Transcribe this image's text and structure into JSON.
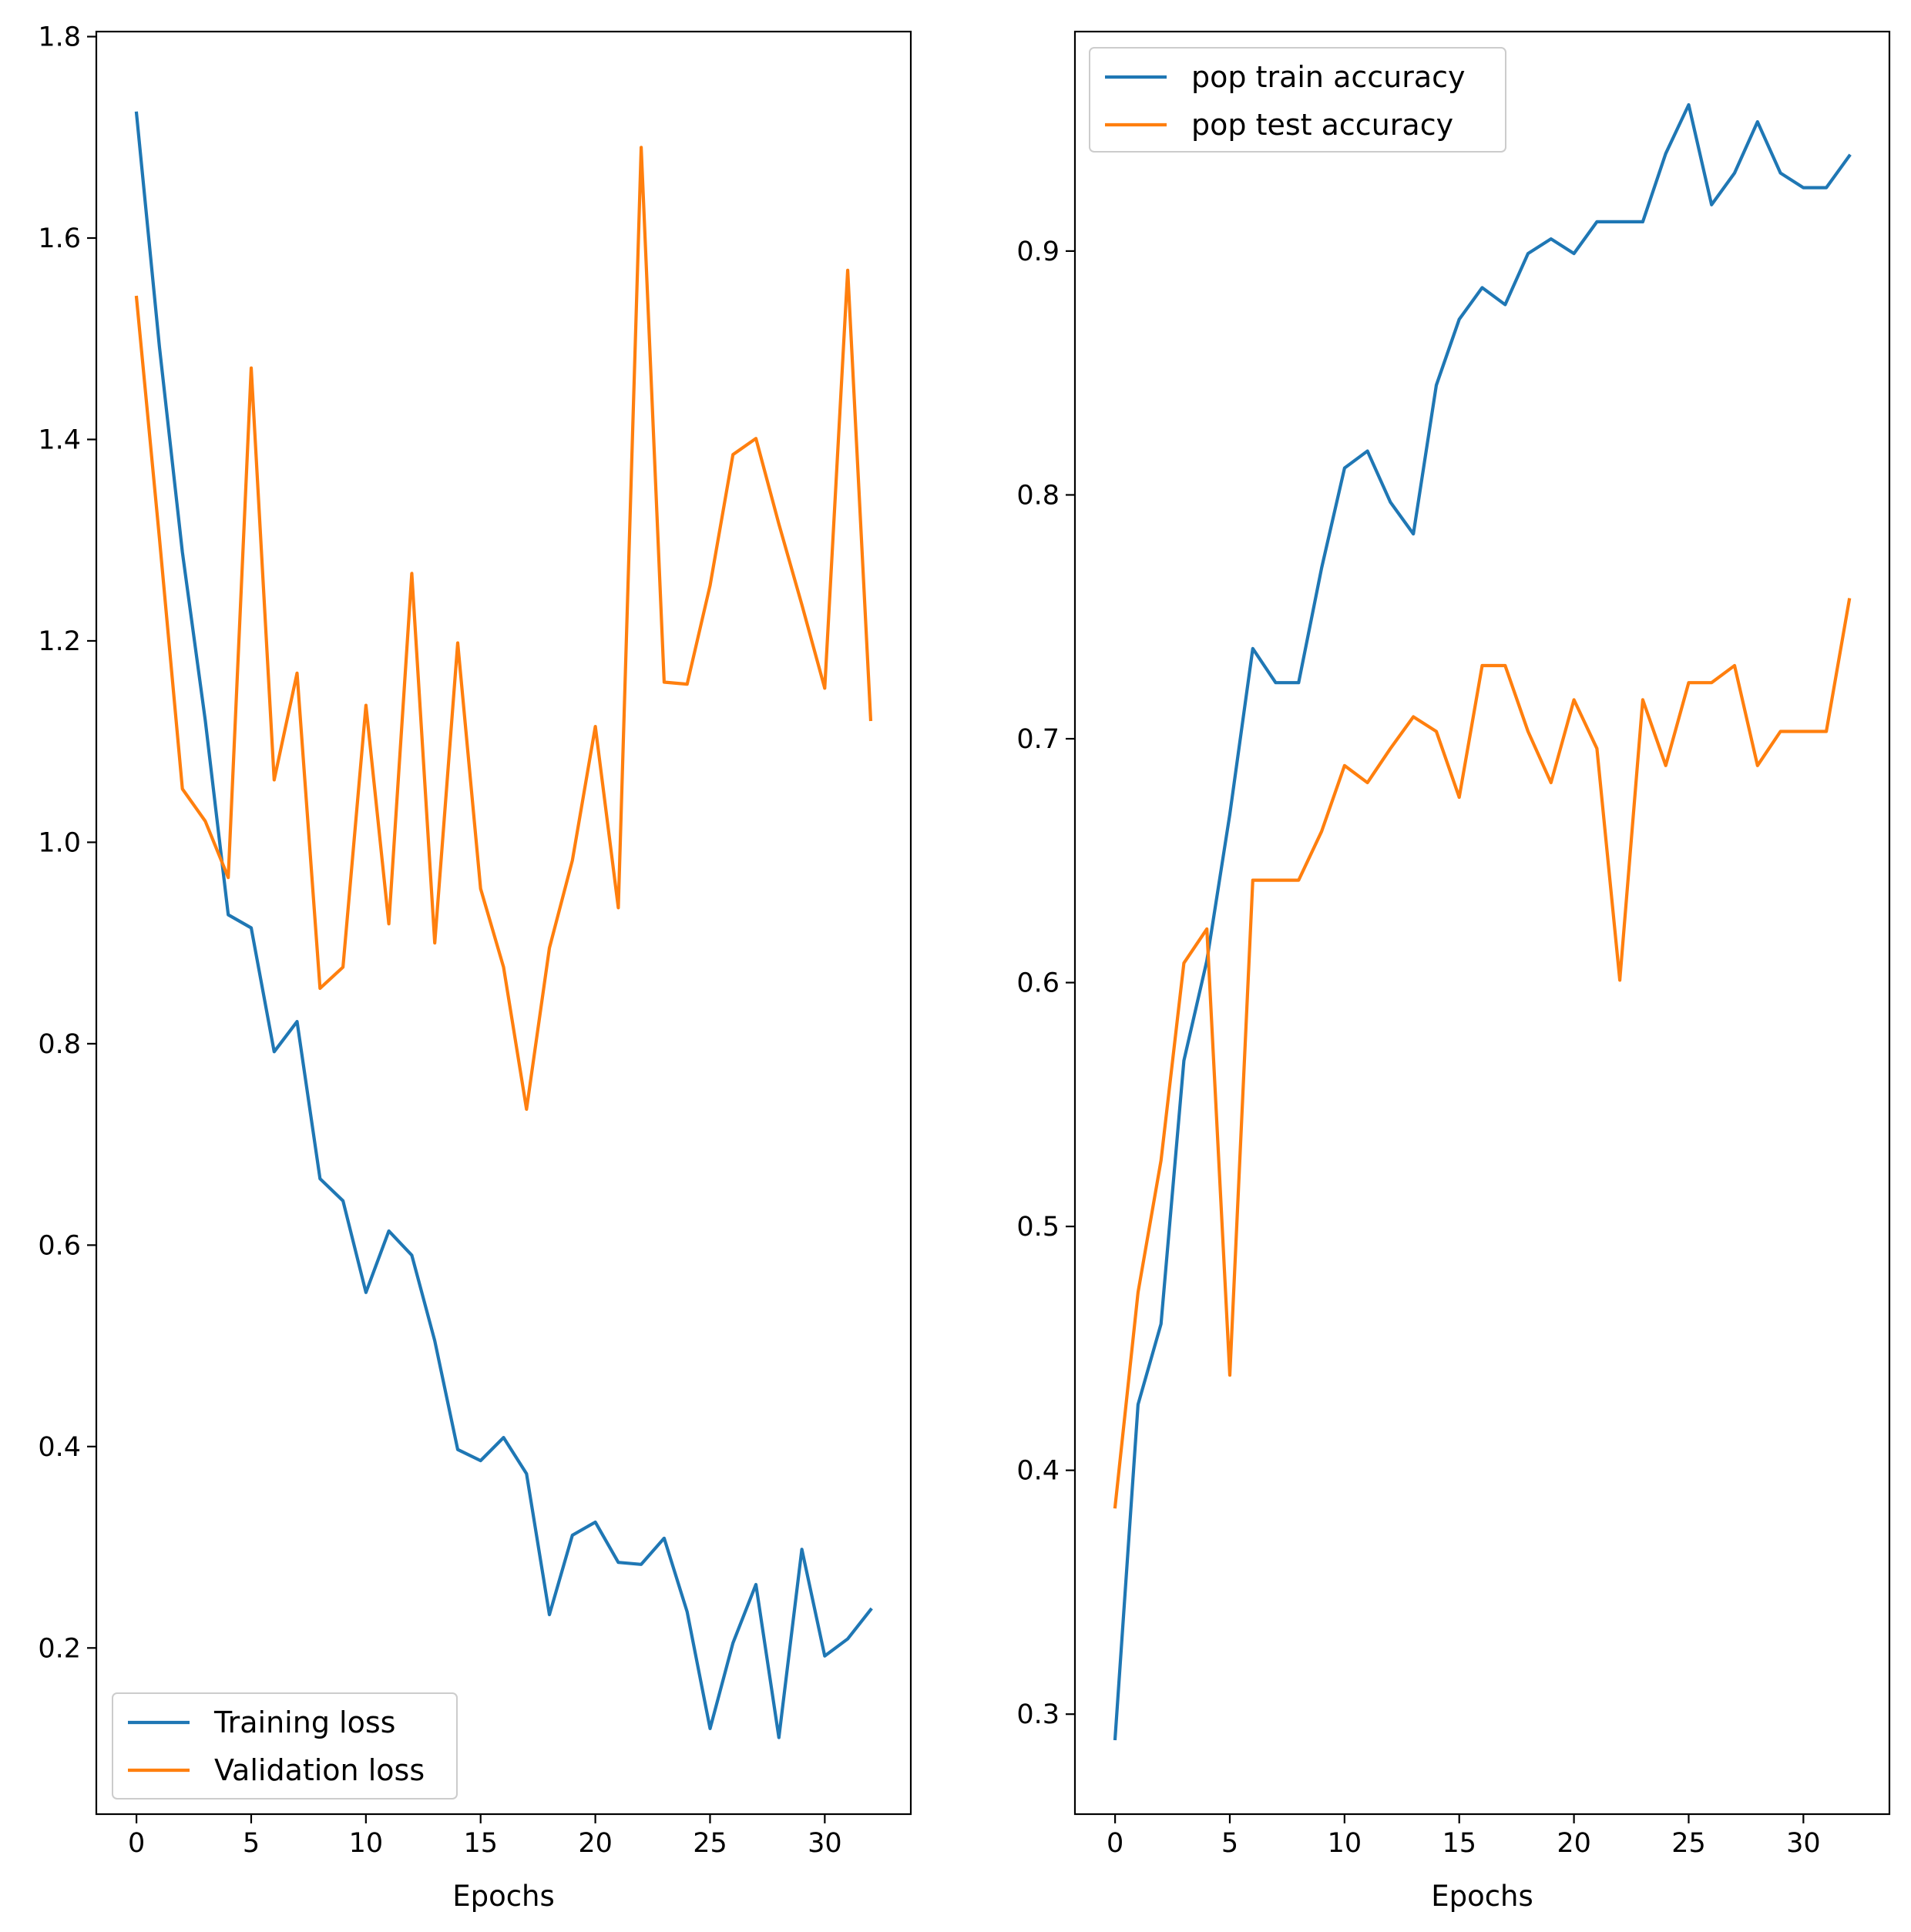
{
  "figure": {
    "charts": [
      {
        "legend_position": "lower-left"
      },
      {
        "legend_position": "upper-left"
      }
    ]
  },
  "chart_data": [
    {
      "type": "line",
      "title": "",
      "xlabel": "Epochs",
      "ylabel": "",
      "xlim": [
        -1.75,
        33.75
      ],
      "ylim": [
        0.035,
        1.805
      ],
      "xticks": [
        0,
        5,
        10,
        15,
        20,
        25,
        30
      ],
      "yticks": [
        0.2,
        0.4,
        0.6,
        0.8,
        1.0,
        1.2,
        1.4,
        1.6,
        1.8
      ],
      "ytick_labels": [
        "0.2",
        "0.4",
        "0.6",
        "0.8",
        "1.0",
        "1.2",
        "1.4",
        "1.6",
        "1.8"
      ],
      "grid": false,
      "legend": "lower-left",
      "x": [
        0,
        1,
        2,
        3,
        4,
        5,
        6,
        7,
        8,
        9,
        10,
        11,
        12,
        13,
        14,
        15,
        16,
        17,
        18,
        19,
        20,
        21,
        22,
        23,
        24,
        25,
        26,
        27,
        28,
        29,
        30,
        31,
        32
      ],
      "series": [
        {
          "name": "Training loss",
          "color": "#1f77b4",
          "values": [
            1.724,
            1.492,
            1.288,
            1.121,
            0.928,
            0.915,
            0.792,
            0.822,
            0.666,
            0.644,
            0.553,
            0.614,
            0.59,
            0.505,
            0.397,
            0.386,
            0.409,
            0.373,
            0.233,
            0.312,
            0.325,
            0.285,
            0.283,
            0.309,
            0.236,
            0.12,
            0.205,
            0.263,
            0.111,
            0.298,
            0.192,
            0.209,
            0.238
          ]
        },
        {
          "name": "Validation loss",
          "color": "#ff7f0e",
          "values": [
            1.541,
            1.302,
            1.053,
            1.021,
            0.965,
            1.471,
            1.062,
            1.168,
            0.855,
            0.876,
            1.136,
            0.919,
            1.267,
            0.9,
            1.198,
            0.954,
            0.876,
            0.735,
            0.895,
            0.982,
            1.115,
            0.935,
            1.69,
            1.159,
            1.157,
            1.255,
            1.385,
            1.401,
            1.316,
            1.236,
            1.153,
            1.568,
            1.122
          ]
        }
      ]
    },
    {
      "type": "line",
      "title": "",
      "xlabel": "Epochs",
      "ylabel": "",
      "xlim": [
        -1.75,
        33.75
      ],
      "ylim": [
        0.259,
        0.99
      ],
      "xticks": [
        0,
        5,
        10,
        15,
        20,
        25,
        30
      ],
      "yticks": [
        0.3,
        0.4,
        0.5,
        0.6,
        0.7,
        0.8,
        0.9
      ],
      "ytick_labels": [
        "0.3",
        "0.4",
        "0.5",
        "0.6",
        "0.7",
        "0.8",
        "0.9"
      ],
      "grid": false,
      "legend": "upper-left",
      "x": [
        0,
        1,
        2,
        3,
        4,
        5,
        6,
        7,
        8,
        9,
        10,
        11,
        12,
        13,
        14,
        15,
        16,
        17,
        18,
        19,
        20,
        21,
        22,
        23,
        24,
        25,
        26,
        27,
        28,
        29,
        30,
        31,
        32
      ],
      "series": [
        {
          "name": "pop train accuracy",
          "color": "#1f77b4",
          "values": [
            0.29,
            0.427,
            0.46,
            0.568,
            0.609,
            0.669,
            0.737,
            0.723,
            0.723,
            0.77,
            0.811,
            0.818,
            0.797,
            0.784,
            0.845,
            0.872,
            0.885,
            0.878,
            0.899,
            0.905,
            0.899,
            0.912,
            0.912,
            0.912,
            0.94,
            0.96,
            0.919,
            0.932,
            0.953,
            0.932,
            0.926,
            0.926,
            0.939
          ]
        },
        {
          "name": "pop test accuracy",
          "color": "#ff7f0e",
          "values": [
            0.385,
            0.473,
            0.527,
            0.608,
            0.622,
            0.439,
            0.642,
            0.642,
            0.642,
            0.662,
            0.689,
            0.682,
            0.696,
            0.709,
            0.703,
            0.676,
            0.73,
            0.73,
            0.703,
            0.682,
            0.716,
            0.696,
            0.601,
            0.716,
            0.689,
            0.723,
            0.723,
            0.73,
            0.689,
            0.703,
            0.703,
            0.703,
            0.757
          ]
        }
      ]
    }
  ]
}
